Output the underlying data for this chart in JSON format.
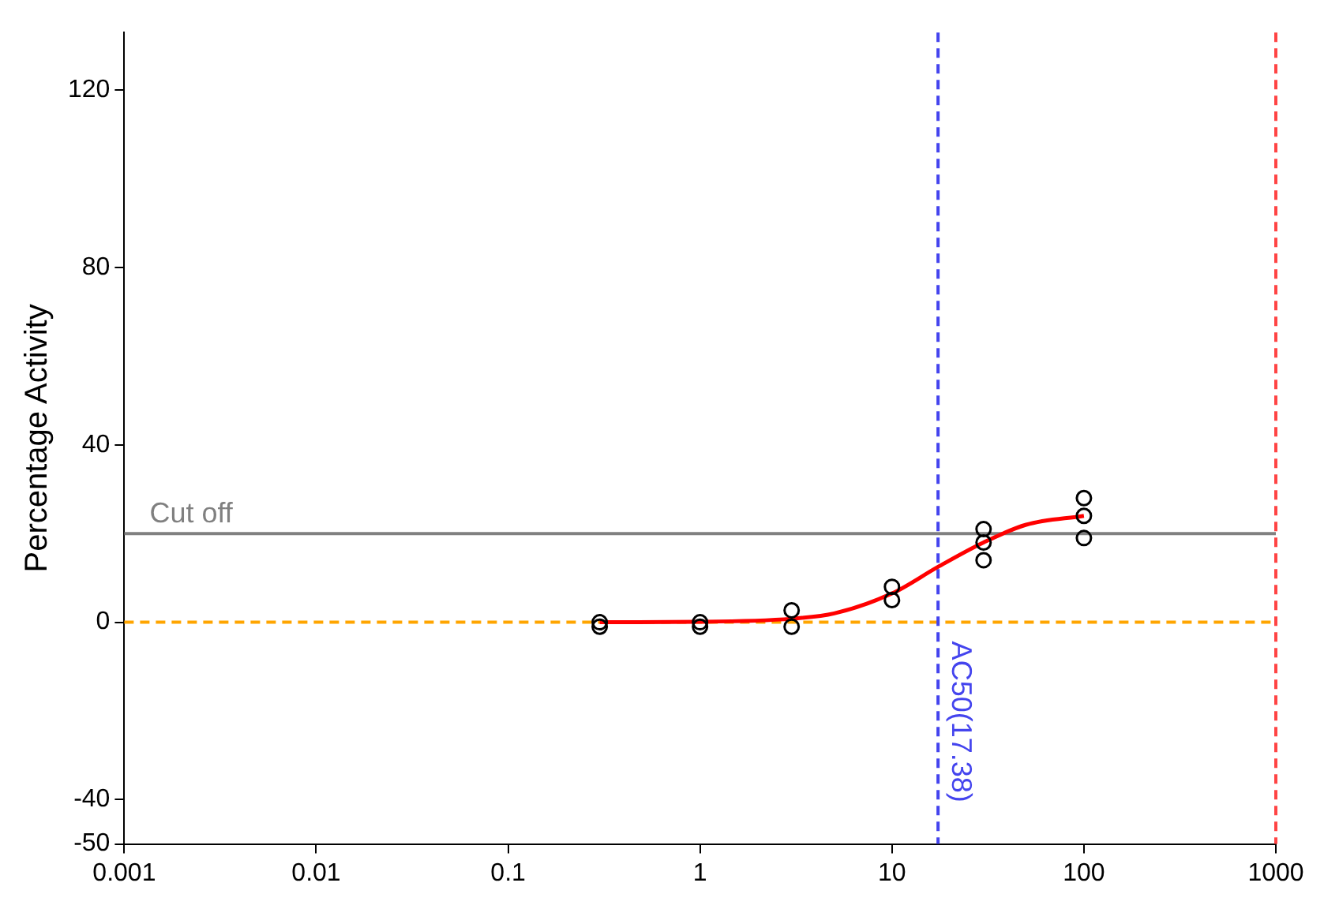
{
  "chart_data": {
    "type": "scatter",
    "ylabel": "Percentage Activity",
    "log": "x",
    "grid": false,
    "legend": false,
    "marker": "circle",
    "xlim": [
      0.001,
      1000
    ],
    "ylim": [
      -50,
      133
    ],
    "xticks": [
      0.001,
      0.01,
      0.1,
      1,
      10,
      100,
      1000
    ],
    "yticks": [
      -50,
      -40,
      0,
      40,
      80,
      120
    ],
    "series": [
      {
        "color": "#000000",
        "x": [
          0.3,
          0.3,
          1,
          1,
          3,
          3,
          10,
          10,
          30,
          30,
          30,
          100,
          100,
          100
        ],
        "values": [
          0,
          -1,
          0,
          -1,
          2.7,
          -1,
          8,
          5,
          21,
          18,
          14,
          28,
          24,
          19
        ]
      },
      {
        "type": "line",
        "color": "#ff0000",
        "marker": "none",
        "line_style": "solid",
        "x": [
          0.3,
          1,
          3,
          5,
          10,
          17.38,
          30,
          50,
          100
        ],
        "values": [
          0,
          0.1,
          0.8,
          2,
          6.5,
          12.5,
          18,
          22,
          24
        ]
      }
    ],
    "ref_lines": [
      {
        "axis": "y",
        "value": 20,
        "label": "Cut off",
        "color": "#808080",
        "line_style": "solid"
      },
      {
        "axis": "y",
        "value": 0,
        "color": "#ffa500",
        "line_style": "dashed"
      },
      {
        "axis": "x",
        "value": 17.38,
        "label": "AC50(17.38)",
        "color": "#4444ee",
        "line_style": "dashed"
      },
      {
        "axis": "x",
        "value": 1000,
        "color": "#ff4444",
        "line_style": "dashed"
      }
    ]
  }
}
